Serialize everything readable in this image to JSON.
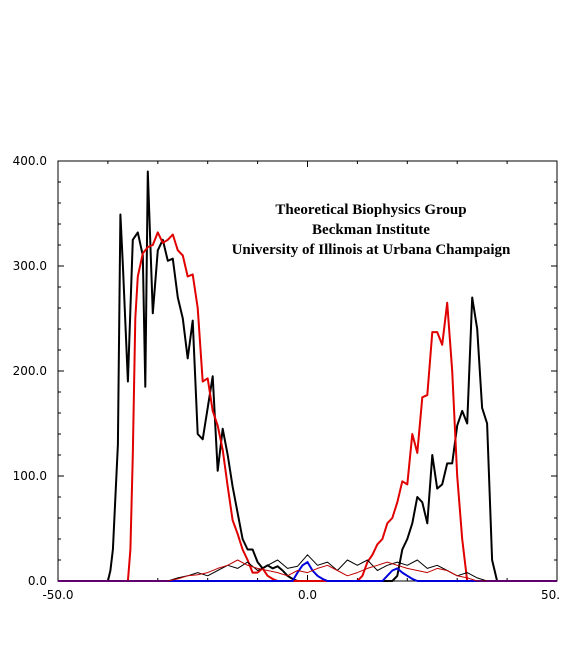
{
  "chart_data": {
    "type": "line",
    "title": "",
    "xlabel": "",
    "ylabel": "",
    "xlim": [
      -50,
      50
    ],
    "ylim": [
      0,
      400
    ],
    "x_ticks": [
      {
        "value": -50,
        "label": "-50.0"
      },
      {
        "value": 0,
        "label": "0.0"
      },
      {
        "value": 50,
        "label": "50."
      }
    ],
    "y_ticks": [
      {
        "value": 0,
        "label": "0.0"
      },
      {
        "value": 100,
        "label": "100.0"
      },
      {
        "value": 200,
        "label": "200.0"
      },
      {
        "value": 300,
        "label": "300.0"
      },
      {
        "value": 400,
        "label": "400.0"
      }
    ],
    "grid": false,
    "legend": "none",
    "annotation_lines": [
      "Theoretical Biophysics Group",
      "Beckman Institute",
      "University of Illinois at Urbana Champaign"
    ],
    "series": [
      {
        "color": "#000000",
        "width": 2,
        "x": [
          -50,
          -40,
          -39.5,
          -39,
          -38,
          -37.5,
          -37,
          -36,
          -35,
          -34,
          -33,
          -32.5,
          -32,
          -31,
          -30,
          -29,
          -28,
          -27,
          -26,
          -25,
          -24,
          -23,
          -22,
          -21,
          -20,
          -19,
          -18,
          -17,
          -16,
          -15,
          -14,
          -13,
          -12,
          -11,
          -10,
          -9,
          -8,
          -7,
          -6,
          -5,
          -4,
          -3,
          -2,
          -1,
          0,
          1,
          2,
          3,
          4,
          5,
          6,
          7,
          8,
          9,
          10,
          11,
          12,
          13,
          14,
          15,
          16,
          17,
          18,
          19,
          20,
          21,
          22,
          23,
          24,
          25,
          26,
          27,
          28,
          29,
          30,
          31,
          32,
          33,
          34,
          35,
          36,
          37,
          38,
          39,
          40,
          50
        ],
        "y": [
          0,
          0,
          10,
          30,
          130,
          349,
          300,
          190,
          325,
          332,
          310,
          185,
          390,
          255,
          315,
          325,
          305,
          307,
          270,
          250,
          212,
          248,
          140,
          135,
          165,
          195,
          105,
          145,
          120,
          90,
          65,
          40,
          30,
          30,
          18,
          12,
          15,
          12,
          14,
          10,
          5,
          2,
          0,
          0,
          0,
          0,
          0,
          0,
          0,
          0,
          0,
          0,
          0,
          0,
          0,
          0,
          0,
          0,
          0,
          0,
          0,
          0,
          5,
          30,
          40,
          55,
          80,
          75,
          55,
          120,
          88,
          92,
          112,
          112,
          148,
          162,
          150,
          270,
          240,
          165,
          150,
          20,
          0,
          0,
          0,
          0
        ]
      },
      {
        "color": "#e00000",
        "width": 2,
        "x": [
          -50,
          -36,
          -35.5,
          -35,
          -34.5,
          -34,
          -33,
          -32,
          -31,
          -30,
          -29,
          -28,
          -27,
          -26,
          -25,
          -24,
          -23,
          -22,
          -21,
          -20,
          -19,
          -18,
          -17,
          -16,
          -15,
          -14,
          -13,
          -12,
          -11,
          -10,
          -9,
          -8,
          -7,
          -6,
          -5,
          -4,
          -3,
          -2,
          10,
          11,
          12,
          13,
          14,
          15,
          16,
          17,
          18,
          19,
          20,
          21,
          22,
          23,
          24,
          25,
          26,
          27,
          28,
          29,
          30,
          31,
          32,
          33,
          34,
          34.5,
          35,
          36,
          50
        ],
        "y": [
          0,
          0,
          30,
          120,
          250,
          290,
          312,
          318,
          320,
          332,
          322,
          325,
          330,
          315,
          310,
          290,
          292,
          260,
          190,
          193,
          162,
          148,
          125,
          90,
          58,
          45,
          30,
          20,
          8,
          8,
          12,
          5,
          2,
          0,
          0,
          0,
          0,
          0,
          0,
          5,
          18,
          25,
          35,
          40,
          55,
          60,
          75,
          95,
          92,
          140,
          122,
          175,
          177,
          237,
          237,
          225,
          265,
          200,
          100,
          40,
          0,
          0,
          0,
          0,
          0,
          0,
          0
        ]
      },
      {
        "color": "#0000dd",
        "width": 2,
        "x": [
          -50,
          -3,
          -2,
          -1,
          0,
          1,
          2,
          3,
          4,
          15,
          16,
          17,
          18,
          19,
          20,
          21,
          22,
          50
        ],
        "y": [
          0,
          0,
          8,
          15,
          18,
          10,
          5,
          2,
          0,
          0,
          5,
          10,
          12,
          8,
          5,
          2,
          0,
          0
        ]
      },
      {
        "color": "#000000",
        "width": 1,
        "x": [
          -50,
          -28,
          -26,
          -24,
          -22,
          -20,
          -18,
          -16,
          -14,
          -12,
          -10,
          -8,
          -6,
          -4,
          -2,
          0,
          2,
          4,
          6,
          8,
          10,
          12,
          14,
          16,
          18,
          20,
          22,
          24,
          26,
          28,
          30,
          32,
          34,
          36,
          50
        ],
        "y": [
          0,
          0,
          3,
          5,
          8,
          5,
          10,
          15,
          12,
          18,
          10,
          15,
          20,
          12,
          14,
          25,
          15,
          18,
          10,
          20,
          15,
          20,
          10,
          15,
          18,
          15,
          20,
          12,
          15,
          10,
          5,
          8,
          3,
          0,
          0
        ]
      },
      {
        "color": "#c00000",
        "width": 1,
        "x": [
          -50,
          -28,
          -26,
          -24,
          -22,
          -20,
          -18,
          -16,
          -14,
          -12,
          -10,
          -8,
          -6,
          -4,
          -2,
          0,
          2,
          4,
          6,
          8,
          10,
          12,
          14,
          16,
          18,
          20,
          22,
          24,
          26,
          28,
          30,
          32,
          34,
          50
        ],
        "y": [
          0,
          0,
          2,
          5,
          6,
          8,
          12,
          15,
          20,
          15,
          12,
          10,
          8,
          5,
          10,
          8,
          12,
          15,
          10,
          5,
          8,
          12,
          15,
          18,
          15,
          12,
          10,
          8,
          12,
          10,
          5,
          3,
          0,
          0
        ]
      }
    ]
  }
}
